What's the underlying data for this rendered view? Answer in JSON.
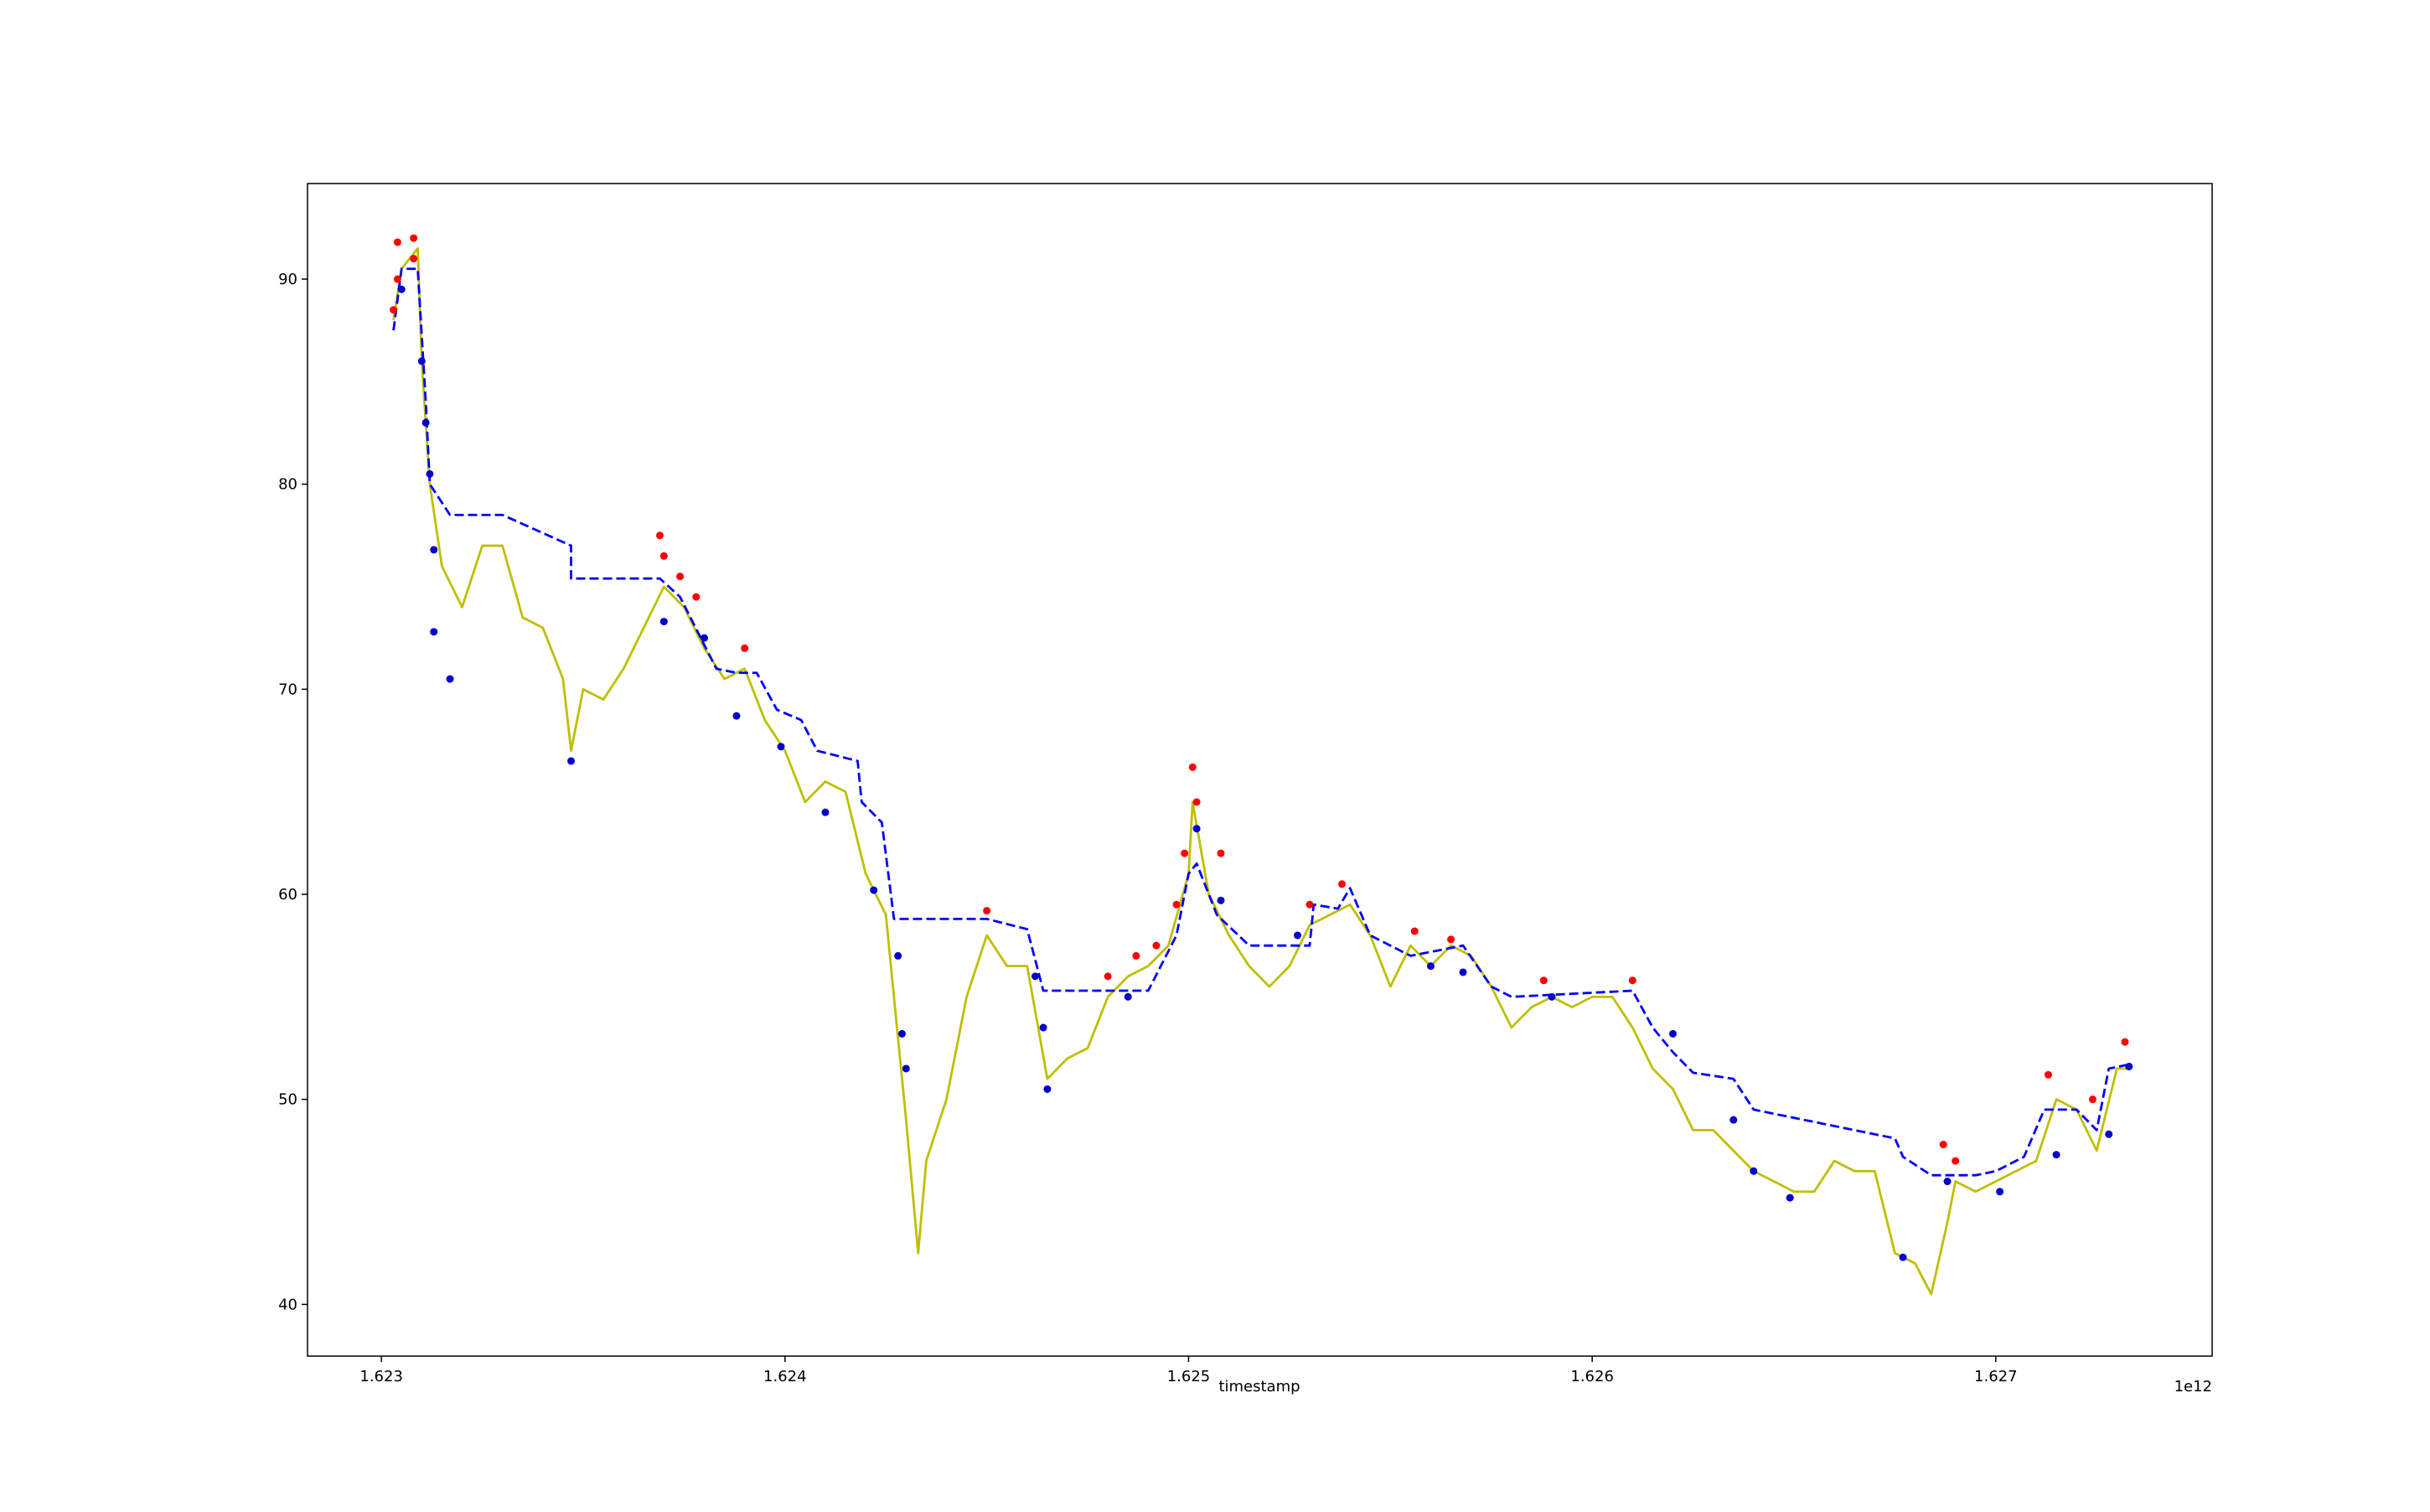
{
  "chart_data": {
    "type": "line",
    "xlabel": "timestamp",
    "x_offset_label": "1e12",
    "xlim": [
      1.622817,
      1.627536
    ],
    "ylim": [
      37.48,
      94.66
    ],
    "xticks": [
      1.623,
      1.624,
      1.625,
      1.626,
      1.627
    ],
    "yticks": [
      40,
      50,
      60,
      70,
      80,
      90
    ],
    "grid": false,
    "series": [
      {
        "type": "line",
        "color": "#bfbf00",
        "linestyle": "solid",
        "x": [
          1.62303,
          1.62305,
          1.62309,
          1.6231,
          1.62312,
          1.62315,
          1.6232,
          1.62325,
          1.6233,
          1.62335,
          1.6234,
          1.62345,
          1.62347,
          1.6235,
          1.62355,
          1.6236,
          1.62365,
          1.6237,
          1.62375,
          1.6238,
          1.62385,
          1.6239,
          1.62395,
          1.624,
          1.62405,
          1.6241,
          1.62415,
          1.6242,
          1.62425,
          1.6243,
          1.62433,
          1.62435,
          1.6244,
          1.62445,
          1.6245,
          1.62455,
          1.6246,
          1.62465,
          1.6247,
          1.62475,
          1.6248,
          1.62485,
          1.6249,
          1.62495,
          1.625,
          1.62501,
          1.62505,
          1.6251,
          1.62515,
          1.6252,
          1.62525,
          1.6253,
          1.62535,
          1.6254,
          1.62545,
          1.6255,
          1.62555,
          1.6256,
          1.62565,
          1.6257,
          1.62575,
          1.6258,
          1.62585,
          1.6259,
          1.62595,
          1.626,
          1.62605,
          1.6261,
          1.62615,
          1.6262,
          1.62625,
          1.6263,
          1.62635,
          1.6264,
          1.62645,
          1.6265,
          1.62655,
          1.6266,
          1.62665,
          1.6267,
          1.62675,
          1.6268,
          1.62684,
          1.62688,
          1.6269,
          1.62695,
          1.627,
          1.62705,
          1.6271,
          1.62715,
          1.6272,
          1.62725,
          1.6273,
          1.62733
        ],
        "values": [
          88,
          90.5,
          91.5,
          86,
          80,
          76,
          74,
          77,
          77,
          73.5,
          73,
          70.5,
          67,
          70,
          69.5,
          71,
          73,
          75,
          74,
          72,
          70.5,
          71,
          68.5,
          67,
          64.5,
          65.5,
          65,
          61,
          59,
          49,
          42.5,
          47,
          50,
          55,
          58,
          56.5,
          56.5,
          51,
          52,
          52.5,
          55,
          56,
          56.5,
          57.5,
          61,
          64.5,
          60,
          58,
          56.5,
          55.5,
          56.5,
          58.5,
          59,
          59.5,
          58,
          55.5,
          57.5,
          56.5,
          57.5,
          57,
          55.5,
          53.5,
          54.5,
          55,
          54.5,
          55,
          55,
          53.5,
          51.5,
          50.5,
          48.5,
          48.5,
          47.5,
          46.5,
          46,
          45.5,
          45.5,
          47,
          46.5,
          46.5,
          42.5,
          42,
          40.5,
          44,
          46,
          45.5,
          46,
          46.5,
          47,
          50,
          49.5,
          47.5,
          51.5,
          51.5
        ]
      },
      {
        "type": "line",
        "color": "#0000ff",
        "linestyle": "dashed",
        "x": [
          1.62303,
          1.62305,
          1.62309,
          1.62311,
          1.62312,
          1.62317,
          1.6233,
          1.62347,
          1.62347,
          1.62369,
          1.62374,
          1.62383,
          1.62388,
          1.62393,
          1.62398,
          1.62404,
          1.62408,
          1.62418,
          1.62419,
          1.62424,
          1.62427,
          1.6245,
          1.6246,
          1.62464,
          1.6249,
          1.62497,
          1.625,
          1.62502,
          1.62507,
          1.62515,
          1.6253,
          1.62531,
          1.62537,
          1.6254,
          1.62545,
          1.62555,
          1.62568,
          1.62575,
          1.6258,
          1.6261,
          1.62615,
          1.6262,
          1.62625,
          1.62635,
          1.6264,
          1.62655,
          1.62675,
          1.62677,
          1.62684,
          1.62695,
          1.627,
          1.62707,
          1.62712,
          1.6272,
          1.62725,
          1.62728,
          1.62733
        ],
        "values": [
          87.5,
          90.5,
          90.5,
          84,
          80,
          78.5,
          78.5,
          77,
          75.4,
          75.4,
          74.5,
          71,
          70.8,
          70.8,
          69,
          68.5,
          67,
          66.5,
          64.5,
          63.5,
          58.8,
          58.8,
          58.3,
          55.3,
          55.3,
          58,
          61,
          61.5,
          59,
          57.5,
          57.5,
          59.5,
          59.3,
          60.3,
          58,
          57,
          57.5,
          55.5,
          55,
          55.3,
          53.5,
          52.3,
          51.3,
          51,
          49.5,
          48.9,
          48.1,
          47.2,
          46.3,
          46.3,
          46.5,
          47.2,
          49.5,
          49.5,
          48.5,
          51.5,
          51.7
        ]
      },
      {
        "type": "scatter",
        "color": "#ff0000",
        "x": [
          1.62303,
          1.62304,
          1.62304,
          1.62308,
          1.62308,
          1.62369,
          1.6237,
          1.62374,
          1.62378,
          1.6239,
          1.6245,
          1.6248,
          1.62487,
          1.62492,
          1.62497,
          1.62499,
          1.62501,
          1.62502,
          1.62508,
          1.6253,
          1.62538,
          1.62556,
          1.62565,
          1.62588,
          1.6261,
          1.62687,
          1.6269,
          1.62713,
          1.62724,
          1.62732
        ],
        "values": [
          88.5,
          90,
          91.8,
          92,
          91,
          77.5,
          76.5,
          75.5,
          74.5,
          72,
          59.2,
          56,
          57,
          57.5,
          59.5,
          62,
          66.2,
          64.5,
          62,
          59.5,
          60.5,
          58.2,
          57.8,
          55.8,
          55.8,
          47.8,
          47,
          51.2,
          50,
          52.8
        ]
      },
      {
        "type": "scatter",
        "color": "#0000cc",
        "x": [
          1.62305,
          1.6231,
          1.62311,
          1.62312,
          1.62313,
          1.62313,
          1.62317,
          1.62347,
          1.6237,
          1.6238,
          1.62388,
          1.62399,
          1.6241,
          1.62422,
          1.62428,
          1.62429,
          1.6243,
          1.62462,
          1.62464,
          1.62465,
          1.62485,
          1.62502,
          1.62508,
          1.62527,
          1.6256,
          1.62568,
          1.6259,
          1.6262,
          1.62635,
          1.6264,
          1.62649,
          1.62677,
          1.62688,
          1.62701,
          1.62715,
          1.62728,
          1.62733
        ],
        "values": [
          89.5,
          86,
          83,
          80.5,
          76.8,
          72.8,
          70.5,
          66.5,
          73.3,
          72.5,
          68.7,
          67.2,
          64,
          60.2,
          57,
          53.2,
          51.5,
          56,
          53.5,
          50.5,
          55,
          63.2,
          59.7,
          58,
          56.5,
          56.2,
          55,
          53.2,
          49,
          46.5,
          45.2,
          42.3,
          46,
          45.5,
          47.3,
          48.3,
          51.6
        ]
      }
    ]
  }
}
